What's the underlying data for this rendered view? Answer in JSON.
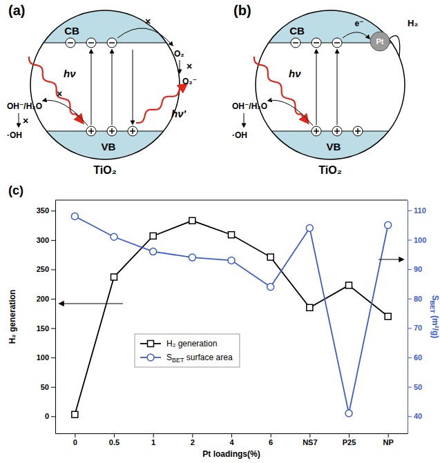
{
  "chart_data": {
    "type": "line",
    "title": "(c)",
    "x_label": "Pt loadings(%)",
    "y_label": "H₂ generation",
    "y2_label": "SBET (m²/g)",
    "categories": [
      "0",
      "0.5",
      "1",
      "2",
      "4",
      "6",
      "NS7",
      "P25",
      "NP"
    ],
    "series": [
      {
        "name": "H₂ generation",
        "color": "#000000",
        "marker": "square",
        "values": [
          3,
          237,
          307,
          333,
          309,
          271,
          185,
          223,
          170
        ]
      },
      {
        "name": "SBET surface area",
        "color": "#3b5bd0",
        "marker": "circle",
        "axis": "y2",
        "values": [
          108,
          101,
          96,
          94,
          93,
          84,
          104,
          41,
          105
        ]
      }
    ],
    "ylim": [
      -29,
      368
    ],
    "yticks": [
      0,
      50,
      100,
      150,
      200,
      250,
      300,
      350
    ],
    "y2lim": [
      34.2,
      113.5
    ],
    "y2ticks": [
      40,
      50,
      60,
      70,
      80,
      90,
      100,
      110
    ],
    "legend": "center"
  },
  "diagrams": [
    {
      "label": "(a)",
      "material": "TiO₂",
      "cb": "CB",
      "vb": "VB",
      "light_in": "hν",
      "light_out": "hν'",
      "acceptor": "O₂",
      "acceptor_product": "O₂⁻",
      "donor": "OH⁻/H₂O",
      "donor_product": "·OH",
      "blocked": "×"
    },
    {
      "label": "(b)",
      "material": "TiO₂",
      "cb": "CB",
      "vb": "VB",
      "light_in": "hν",
      "cocatalyst": "Pt",
      "electron": "e⁻",
      "product": "H₂",
      "donor": "OH⁻/H₂O",
      "donor_product": "·OH"
    }
  ]
}
